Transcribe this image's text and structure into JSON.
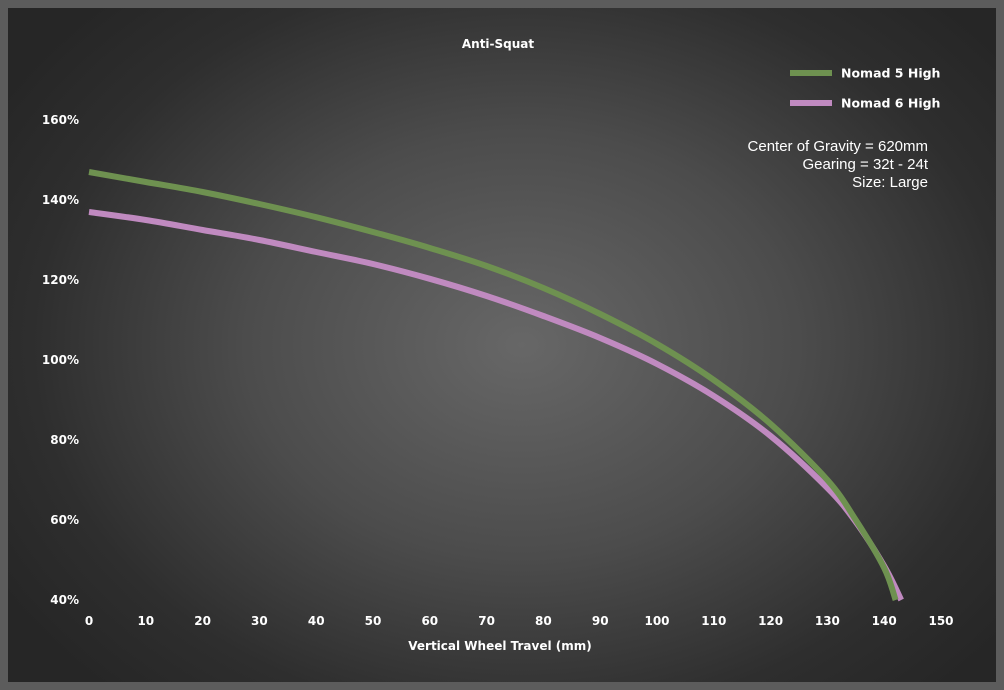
{
  "chart_data": {
    "type": "line",
    "title": "Anti-Squat",
    "xlabel": "Vertical Wheel Travel (mm)",
    "ylabel": "",
    "xlim": [
      0,
      150
    ],
    "ylim": [
      40,
      160
    ],
    "x_ticks": [
      "0",
      "10",
      "20",
      "30",
      "40",
      "50",
      "60",
      "70",
      "80",
      "90",
      "100",
      "110",
      "120",
      "130",
      "140",
      "150"
    ],
    "y_ticks": [
      "40%",
      "60%",
      "80%",
      "100%",
      "120%",
      "140%",
      "160%"
    ],
    "grid": false,
    "legend_position": "top-right",
    "series": [
      {
        "name": "Nomad 5 High",
        "color": "#6e9150",
        "x": [
          0,
          10,
          20,
          30,
          40,
          50,
          60,
          70,
          80,
          90,
          100,
          110,
          120,
          130,
          135,
          140,
          142
        ],
        "y": [
          147,
          144.5,
          142,
          139,
          135.7,
          132,
          128,
          123.5,
          118,
          111.5,
          104,
          95,
          84,
          70,
          60,
          48,
          40
        ]
      },
      {
        "name": "Nomad 6 High",
        "color": "#c08ac0",
        "x": [
          0,
          10,
          20,
          30,
          40,
          50,
          60,
          70,
          80,
          90,
          100,
          110,
          120,
          130,
          135,
          140,
          143
        ],
        "y": [
          137,
          135,
          132.5,
          130,
          127,
          124,
          120.3,
          116,
          111,
          105.5,
          99,
          91,
          81,
          68,
          59.5,
          48.5,
          40
        ]
      }
    ],
    "annotation_lines": [
      "Center of Gravity = 620mm",
      "Gearing = 32t - 24t",
      "Size: Large"
    ]
  }
}
